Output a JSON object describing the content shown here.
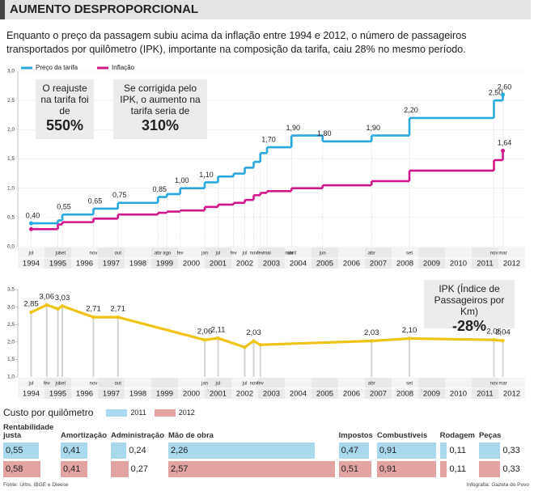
{
  "header": {
    "title": "AUMENTO DESPROPORCIONAL",
    "intro": "Enquanto o preço da passagem subiu acima da inflação entre 1994 e 2012, o número de passageiros transportados por quilômetro (IPK), importante na composição da tarifa, caiu 28% no mesmo período."
  },
  "chart_data": [
    {
      "type": "step",
      "x": [
        "1994-07",
        "1995-07",
        "1995-09",
        "1996-11",
        "1997-10",
        "1999-04",
        "1999-08",
        "2000-02",
        "2001-01",
        "2001-07",
        "2002-02",
        "2002-07",
        "2002-11",
        "2003-02",
        "2003-05",
        "2004-04",
        "2005-06",
        "2007-04",
        "2008-09",
        "2011-11",
        "2012-03"
      ],
      "series": [
        {
          "name": "Preço da tarifa",
          "color": "#29a8e0",
          "values": [
            0.4,
            0.45,
            0.55,
            0.65,
            0.75,
            0.85,
            0.9,
            1.0,
            1.1,
            1.2,
            1.25,
            1.35,
            1.45,
            1.6,
            1.7,
            1.9,
            1.8,
            1.9,
            2.2,
            2.5,
            2.6
          ],
          "value_labels": [
            "0,40",
            null,
            "0,55",
            "0,65",
            "0,75",
            "0,85",
            null,
            "1,00",
            "1,10",
            null,
            null,
            null,
            null,
            null,
            "1,70",
            "1,90",
            "1,80",
            "1,90",
            "2,20",
            "2,50",
            "2,60"
          ]
        },
        {
          "name": "Inflação",
          "color": "#d0178a",
          "values": [
            0.3,
            0.38,
            0.42,
            0.48,
            0.55,
            0.58,
            0.6,
            0.62,
            0.68,
            0.72,
            0.75,
            0.8,
            0.88,
            0.92,
            0.95,
            1.0,
            1.05,
            1.12,
            1.3,
            1.48,
            1.64
          ],
          "value_labels": [
            null,
            null,
            null,
            null,
            null,
            null,
            null,
            null,
            null,
            null,
            null,
            null,
            null,
            null,
            null,
            null,
            null,
            null,
            null,
            null,
            "1,64"
          ]
        }
      ],
      "ylim": [
        0,
        3
      ],
      "yticks": [
        {
          "value": 0,
          "label": "0,0"
        },
        {
          "value": 0.5,
          "label": "0,5"
        },
        {
          "value": 1,
          "label": "1,0"
        },
        {
          "value": 1.5,
          "label": "1,5"
        },
        {
          "value": 2,
          "label": "2,0"
        },
        {
          "value": 2.5,
          "label": "2,5"
        },
        {
          "value": 3,
          "label": "3,0"
        }
      ],
      "xticks": [
        1994,
        1995,
        1996,
        1997,
        1998,
        1999,
        2000,
        2001,
        2002,
        2003,
        2004,
        2005,
        2006,
        2007,
        2008,
        2009,
        2010,
        2011,
        2012
      ],
      "month_ticks": [
        {
          "value": "1994-07",
          "label": "jul"
        },
        {
          "value": "1995-07",
          "label": "jul"
        },
        {
          "value": "1995-09",
          "label": "set"
        },
        {
          "value": "1996-11",
          "label": "nov"
        },
        {
          "value": "1997-10",
          "label": "out"
        },
        {
          "value": "1999-04",
          "label": "abr"
        },
        {
          "value": "1999-08",
          "label": "ago"
        },
        {
          "value": "2000-02",
          "label": "fev"
        },
        {
          "value": "2001-01",
          "label": "jan"
        },
        {
          "value": "2001-07",
          "label": "jul"
        },
        {
          "value": "2002-02",
          "label": "fev"
        },
        {
          "value": "2002-07",
          "label": "jul"
        },
        {
          "value": "2002-11",
          "label": "nov"
        },
        {
          "value": "2003-02",
          "label": "fev"
        },
        {
          "value": "2003-05",
          "label": "mai"
        },
        {
          "value": "2004-03",
          "label": "mar"
        },
        {
          "value": "2004-04",
          "label": "abril"
        },
        {
          "value": "2005-06",
          "label": "jun"
        },
        {
          "value": "2007-04",
          "label": "abr"
        },
        {
          "value": "2008-09",
          "label": "set"
        },
        {
          "value": "2011-11",
          "label": "nov"
        },
        {
          "value": "2012-03",
          "label": "mar"
        }
      ],
      "grid": true,
      "legend": "top-left",
      "annotations": [
        {
          "text": "O reajuste na tarifa foi de",
          "value": "550%"
        },
        {
          "text": "Se corrigida pelo IPK, o aumento na tarifa seria de",
          "value": "310%"
        }
      ]
    },
    {
      "type": "line",
      "x": [
        "1994-07",
        "1995-02",
        "1995-07",
        "1995-09",
        "1996-11",
        "1997-10",
        "2001-01",
        "2001-07",
        "2002-07",
        "2002-11",
        "2003-02",
        "2007-04",
        "2008-09",
        "2011-11",
        "2012-03"
      ],
      "series": [
        {
          "name": "IPK",
          "color": "#efc418",
          "values": [
            2.85,
            3.06,
            2.95,
            3.03,
            2.71,
            2.71,
            2.06,
            2.11,
            1.85,
            2.03,
            1.92,
            2.03,
            2.1,
            2.06,
            2.04
          ],
          "value_labels": [
            "2,85",
            "3,06",
            null,
            "3,03",
            "2,71",
            "2,71",
            "2,06",
            "2,11",
            null,
            "2,03",
            null,
            "2,03",
            "2,10",
            "2,06",
            "2,04"
          ]
        }
      ],
      "ylim": [
        1,
        3.5
      ],
      "yticks": [
        {
          "value": 1,
          "label": "1,0"
        },
        {
          "value": 1.5,
          "label": "1,5"
        },
        {
          "value": 2,
          "label": "2,0"
        },
        {
          "value": 2.5,
          "label": "2,5"
        },
        {
          "value": 3,
          "label": "3,0"
        },
        {
          "value": 3.5,
          "label": "3,5"
        }
      ],
      "xticks": [
        1994,
        1995,
        1996,
        1997,
        1998,
        1999,
        2000,
        2001,
        2002,
        2003,
        2004,
        2005,
        2006,
        2007,
        2008,
        2009,
        2010,
        2011,
        2012
      ],
      "month_ticks": [
        {
          "value": "1994-07",
          "label": "jul"
        },
        {
          "value": "1995-02",
          "label": "fev"
        },
        {
          "value": "1995-07",
          "label": "jul"
        },
        {
          "value": "1995-09",
          "label": "set"
        },
        {
          "value": "1996-11",
          "label": "nov"
        },
        {
          "value": "1997-10",
          "label": "out"
        },
        {
          "value": "2001-01",
          "label": "jan"
        },
        {
          "value": "2001-07",
          "label": "jul"
        },
        {
          "value": "2002-07",
          "label": "jul"
        },
        {
          "value": "2002-11",
          "label": "nov"
        },
        {
          "value": "2003-02",
          "label": "fev"
        },
        {
          "value": "2007-04",
          "label": "abr"
        },
        {
          "value": "2008-09",
          "label": "set"
        },
        {
          "value": "2011-11",
          "label": "nov"
        },
        {
          "value": "2012-03",
          "label": "mar"
        }
      ],
      "grid": false,
      "annotation": {
        "text": "IPK (Índice de Passageiros por Km)",
        "value": "-28%"
      }
    },
    {
      "type": "bar",
      "title": "Custo por quilômetro",
      "categories": [
        "Rentabilidade justa",
        "Amortização",
        "Administração",
        "Mão de obra",
        "Impostos",
        "Combustíveis",
        "Rodagem",
        "Peças"
      ],
      "series": [
        {
          "name": "2011",
          "color": "#a9d8ee",
          "values": [
            0.55,
            0.41,
            0.24,
            2.26,
            0.47,
            0.91,
            0.11,
            0.33
          ],
          "value_labels": [
            "0,55",
            "0,41",
            "0,24",
            "2,26",
            "0,47",
            "0,91",
            "0,11",
            "0,33"
          ]
        },
        {
          "name": "2012",
          "color": "#e4a3a3",
          "values": [
            0.58,
            0.41,
            0.27,
            2.57,
            0.51,
            0.91,
            0.11,
            0.33
          ],
          "value_labels": [
            "0,58",
            "0,41",
            "0,27",
            "2,57",
            "0,51",
            "0,91",
            "0,11",
            "0,33"
          ]
        }
      ]
    }
  ],
  "footer": {
    "source": "Fonte: Urbs, IBGE e Dieese",
    "credit": "Infografia: Gazeta do Povo"
  }
}
